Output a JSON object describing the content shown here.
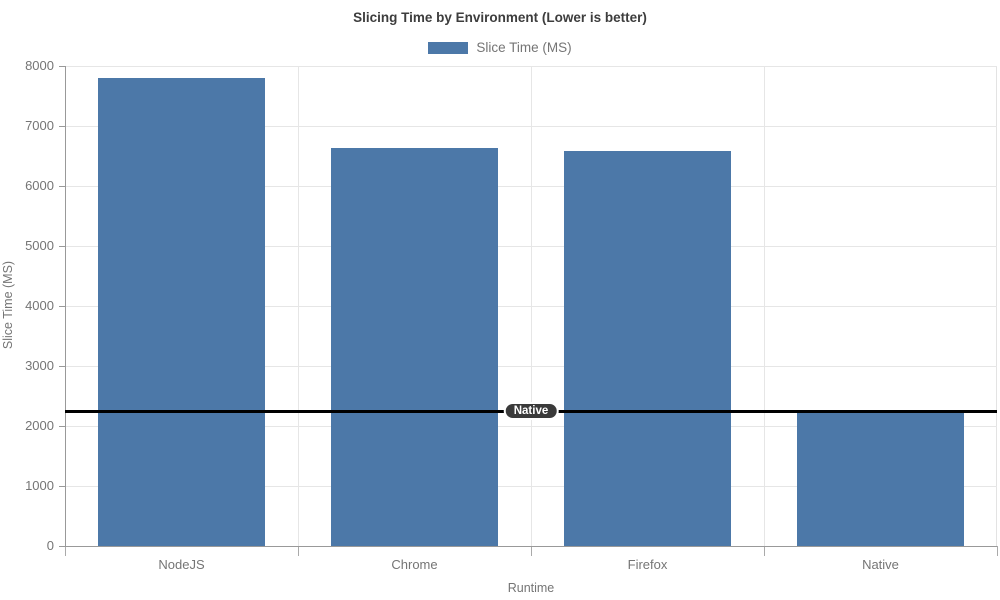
{
  "page": {
    "background": "#ffffff"
  },
  "chart_data": {
    "type": "bar",
    "title": "Slicing Time by Environment (Lower is better)",
    "legend": [
      {
        "label": "Slice Time (MS)",
        "color": "#4C78A8"
      }
    ],
    "legend_position": "top",
    "categories": [
      "NodeJS",
      "Chrome",
      "Firefox",
      "Native"
    ],
    "values": [
      7800,
      6630,
      6590,
      2250
    ],
    "xlabel": "Runtime",
    "ylabel": "Slice Time (MS)",
    "ylim": [
      0,
      8000
    ],
    "yticks": [
      0,
      1000,
      2000,
      3000,
      4000,
      5000,
      6000,
      7000,
      8000
    ],
    "grid": true,
    "bar_color": "#4C78A8",
    "grid_color": "#e6e6e6",
    "axis_color": "#999999",
    "text_color": "#757575",
    "reference_line": {
      "value": 2250,
      "label": "Native",
      "color": "#000000"
    }
  }
}
